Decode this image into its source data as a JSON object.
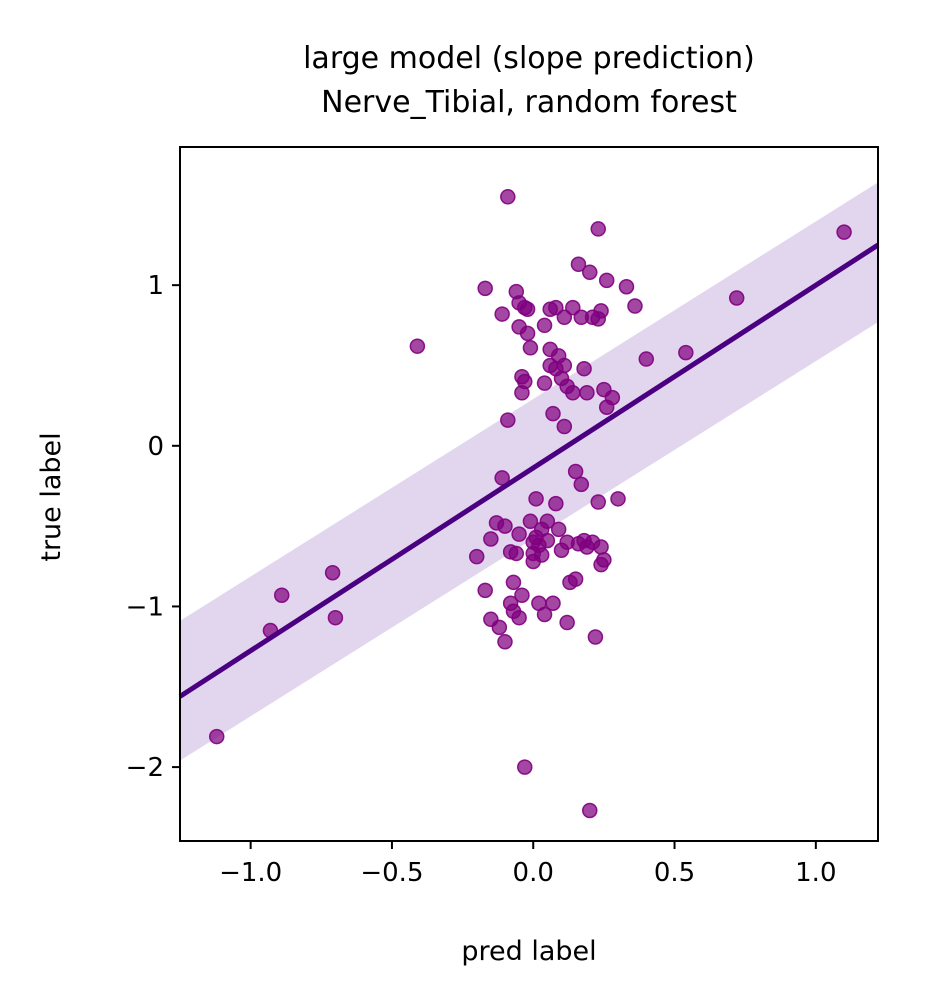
{
  "chart_data": {
    "type": "scatter",
    "title": [
      "large model (slope prediction)",
      "Nerve_Tibial, random forest"
    ],
    "xlabel": "pred label",
    "ylabel": "true label",
    "xlim": [
      -1.25,
      1.22
    ],
    "ylim": [
      -2.46,
      1.86
    ],
    "xticks": [
      -1.0,
      -0.5,
      0.0,
      0.5,
      1.0
    ],
    "xtick_labels": [
      "−1.0",
      "−0.5",
      "0.0",
      "0.5",
      "1.0"
    ],
    "yticks": [
      -2,
      -1,
      0,
      1
    ],
    "ytick_labels": [
      "−2",
      "−1",
      "0",
      "1"
    ],
    "grid": false,
    "legend": "none",
    "colors": {
      "points": "#800080",
      "line": "#4b0082",
      "band": "#d8c8e8"
    },
    "regression": {
      "x": [
        -1.25,
        1.22
      ],
      "y": [
        -1.56,
        1.25
      ],
      "ci_upper": [
        -1.09,
        1.64
      ],
      "ci_lower": [
        -1.96,
        0.77
      ]
    },
    "points": [
      {
        "x": -1.12,
        "y": -1.81
      },
      {
        "x": -0.93,
        "y": -1.15
      },
      {
        "x": -0.89,
        "y": -0.93
      },
      {
        "x": -0.71,
        "y": -0.79
      },
      {
        "x": -0.7,
        "y": -1.07
      },
      {
        "x": -0.41,
        "y": 0.62
      },
      {
        "x": -0.2,
        "y": -0.69
      },
      {
        "x": -0.17,
        "y": -0.9
      },
      {
        "x": -0.17,
        "y": 0.98
      },
      {
        "x": -0.15,
        "y": -0.58
      },
      {
        "x": -0.15,
        "y": -1.08
      },
      {
        "x": -0.13,
        "y": -0.48
      },
      {
        "x": -0.12,
        "y": -1.13
      },
      {
        "x": -0.11,
        "y": 0.82
      },
      {
        "x": -0.11,
        "y": -0.2
      },
      {
        "x": -0.1,
        "y": -0.5
      },
      {
        "x": -0.1,
        "y": -1.22
      },
      {
        "x": -0.09,
        "y": 1.55
      },
      {
        "x": -0.09,
        "y": 0.16
      },
      {
        "x": -0.08,
        "y": -0.66
      },
      {
        "x": -0.08,
        "y": -0.98
      },
      {
        "x": -0.07,
        "y": -1.03
      },
      {
        "x": -0.07,
        "y": -0.85
      },
      {
        "x": -0.06,
        "y": -0.67
      },
      {
        "x": -0.06,
        "y": 0.96
      },
      {
        "x": -0.05,
        "y": -0.55
      },
      {
        "x": -0.05,
        "y": 0.89
      },
      {
        "x": -0.05,
        "y": -1.07
      },
      {
        "x": -0.05,
        "y": 0.74
      },
      {
        "x": -0.04,
        "y": 0.33
      },
      {
        "x": -0.04,
        "y": -0.93
      },
      {
        "x": -0.04,
        "y": 0.43
      },
      {
        "x": -0.03,
        "y": 0.4
      },
      {
        "x": -0.03,
        "y": 0.86
      },
      {
        "x": -0.03,
        "y": -2.0
      },
      {
        "x": -0.02,
        "y": 0.7
      },
      {
        "x": -0.02,
        "y": 0.85
      },
      {
        "x": -0.01,
        "y": 0.61
      },
      {
        "x": -0.01,
        "y": -0.47
      },
      {
        "x": 0.0,
        "y": -0.6
      },
      {
        "x": 0.0,
        "y": -0.67
      },
      {
        "x": 0.0,
        "y": -0.72
      },
      {
        "x": 0.01,
        "y": -0.33
      },
      {
        "x": 0.01,
        "y": -0.57
      },
      {
        "x": 0.02,
        "y": -0.98
      },
      {
        "x": 0.02,
        "y": -0.62
      },
      {
        "x": 0.03,
        "y": -0.52
      },
      {
        "x": 0.03,
        "y": -0.68
      },
      {
        "x": 0.04,
        "y": 0.39
      },
      {
        "x": 0.04,
        "y": -1.05
      },
      {
        "x": 0.04,
        "y": 0.75
      },
      {
        "x": 0.05,
        "y": -0.47
      },
      {
        "x": 0.05,
        "y": -0.59
      },
      {
        "x": 0.06,
        "y": 0.6
      },
      {
        "x": 0.06,
        "y": 0.5
      },
      {
        "x": 0.06,
        "y": 0.85
      },
      {
        "x": 0.07,
        "y": -0.98
      },
      {
        "x": 0.07,
        "y": 0.2
      },
      {
        "x": 0.08,
        "y": 0.86
      },
      {
        "x": 0.08,
        "y": 0.48
      },
      {
        "x": 0.08,
        "y": -0.36
      },
      {
        "x": 0.09,
        "y": 0.56
      },
      {
        "x": 0.09,
        "y": -0.52
      },
      {
        "x": 0.1,
        "y": -0.65
      },
      {
        "x": 0.1,
        "y": 0.42
      },
      {
        "x": 0.11,
        "y": 0.12
      },
      {
        "x": 0.11,
        "y": 0.5
      },
      {
        "x": 0.11,
        "y": 0.8
      },
      {
        "x": 0.12,
        "y": -0.6
      },
      {
        "x": 0.12,
        "y": -1.1
      },
      {
        "x": 0.12,
        "y": 0.37
      },
      {
        "x": 0.13,
        "y": -0.85
      },
      {
        "x": 0.14,
        "y": 0.86
      },
      {
        "x": 0.14,
        "y": 0.33
      },
      {
        "x": 0.15,
        "y": -0.83
      },
      {
        "x": 0.15,
        "y": -0.16
      },
      {
        "x": 0.16,
        "y": 1.13
      },
      {
        "x": 0.16,
        "y": -0.61
      },
      {
        "x": 0.17,
        "y": 0.8
      },
      {
        "x": 0.17,
        "y": -0.24
      },
      {
        "x": 0.18,
        "y": 0.48
      },
      {
        "x": 0.18,
        "y": -0.59
      },
      {
        "x": 0.19,
        "y": 0.33
      },
      {
        "x": 0.19,
        "y": -0.63
      },
      {
        "x": 0.2,
        "y": -2.27
      },
      {
        "x": 0.2,
        "y": 1.08
      },
      {
        "x": 0.21,
        "y": 0.8
      },
      {
        "x": 0.21,
        "y": -0.6
      },
      {
        "x": 0.22,
        "y": -1.19
      },
      {
        "x": 0.23,
        "y": 0.79
      },
      {
        "x": 0.23,
        "y": 1.35
      },
      {
        "x": 0.23,
        "y": -0.35
      },
      {
        "x": 0.24,
        "y": -0.63
      },
      {
        "x": 0.24,
        "y": 0.84
      },
      {
        "x": 0.24,
        "y": -0.74
      },
      {
        "x": 0.25,
        "y": 0.35
      },
      {
        "x": 0.25,
        "y": -0.71
      },
      {
        "x": 0.26,
        "y": 1.03
      },
      {
        "x": 0.26,
        "y": 0.24
      },
      {
        "x": 0.28,
        "y": 0.3
      },
      {
        "x": 0.3,
        "y": -0.33
      },
      {
        "x": 0.33,
        "y": 0.99
      },
      {
        "x": 0.36,
        "y": 0.87
      },
      {
        "x": 0.4,
        "y": 0.54
      },
      {
        "x": 0.54,
        "y": 0.58
      },
      {
        "x": 0.72,
        "y": 0.92
      },
      {
        "x": 1.1,
        "y": 1.33
      }
    ]
  }
}
